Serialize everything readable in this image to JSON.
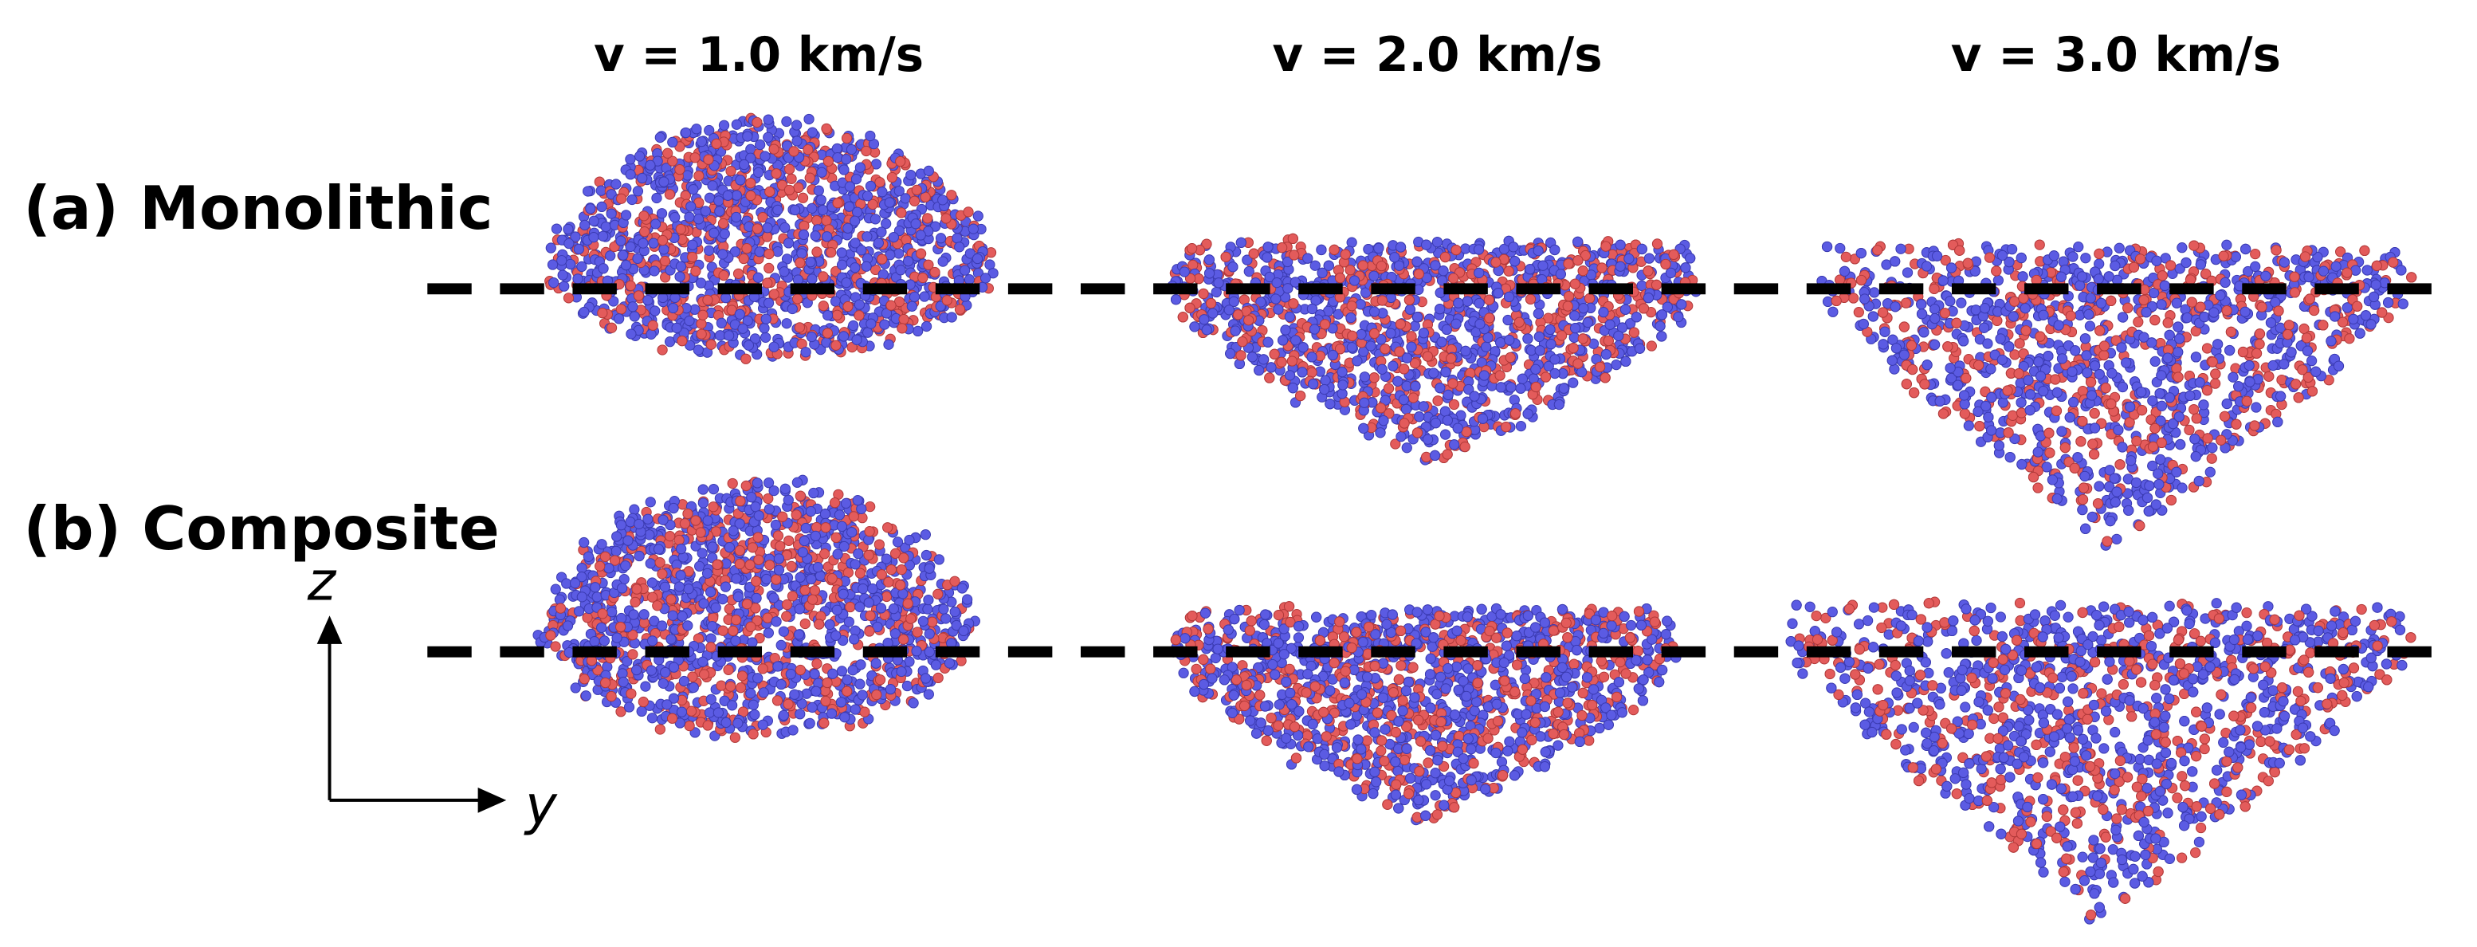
{
  "column_headers": [
    "v = 1.0 km/s",
    "v = 2.0 km/s",
    "v = 3.0 km/s"
  ],
  "row_labels": [
    "(a) Monolithic",
    "(b) Composite"
  ],
  "axes": {
    "vertical": "z",
    "horizontal": "y"
  }
}
